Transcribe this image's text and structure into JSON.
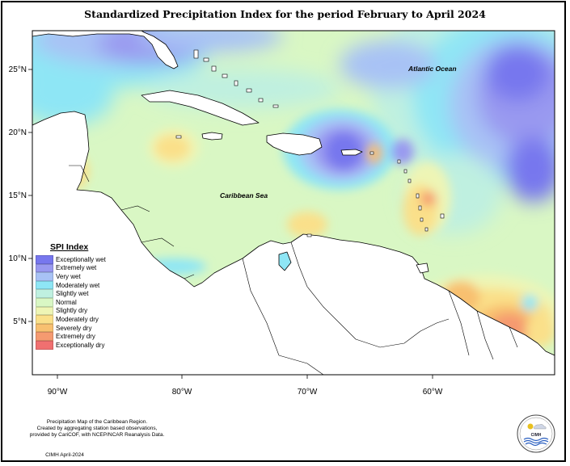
{
  "title": "Standardized Precipitation Index for the period February to April 2024",
  "axes": {
    "lat_labels": [
      "25°N",
      "20°N",
      "15°N",
      "10°N",
      "5°N"
    ],
    "lat_values": [
      25,
      20,
      15,
      10,
      5
    ],
    "lon_labels": [
      "90°W",
      "80°W",
      "70°W",
      "60°W"
    ],
    "lon_values": [
      -90,
      -80,
      -70,
      -60
    ],
    "lon_range": [
      -92,
      -50
    ],
    "lat_range": [
      1,
      28
    ]
  },
  "regions": {
    "atlantic": "Atlantic Ocean",
    "caribbean": "Caribbean Sea"
  },
  "legend": {
    "title": "SPI Index",
    "entries": [
      {
        "label": "Exceptionally wet",
        "color": "#7777ee"
      },
      {
        "label": "Extremely wet",
        "color": "#9999f0"
      },
      {
        "label": "Very wet",
        "color": "#a8c2f5"
      },
      {
        "label": "Moderately wet",
        "color": "#8ee6f5"
      },
      {
        "label": "Slightly wet",
        "color": "#bff0e0"
      },
      {
        "label": "Normal",
        "color": "#d9f7c4"
      },
      {
        "label": "Slightly dry",
        "color": "#eef5b5"
      },
      {
        "label": "Moderately dry",
        "color": "#fae08a"
      },
      {
        "label": "Severely dry",
        "color": "#f8c070"
      },
      {
        "label": "Extremely dry",
        "color": "#f59a70"
      },
      {
        "label": "Exceptionally dry",
        "color": "#f07070"
      }
    ]
  },
  "credit": {
    "lines": [
      "Precipitation Map of the Caribbean Region.",
      "Created by aggregating station based observations,",
      "provided by CariCOF, with NCEP/NCAR Reanalysis Data."
    ],
    "date": "CIMH April-2024"
  },
  "logo": {
    "text": "CIMH",
    "icon": "cimh-logo-sun-cloud-waves"
  }
}
